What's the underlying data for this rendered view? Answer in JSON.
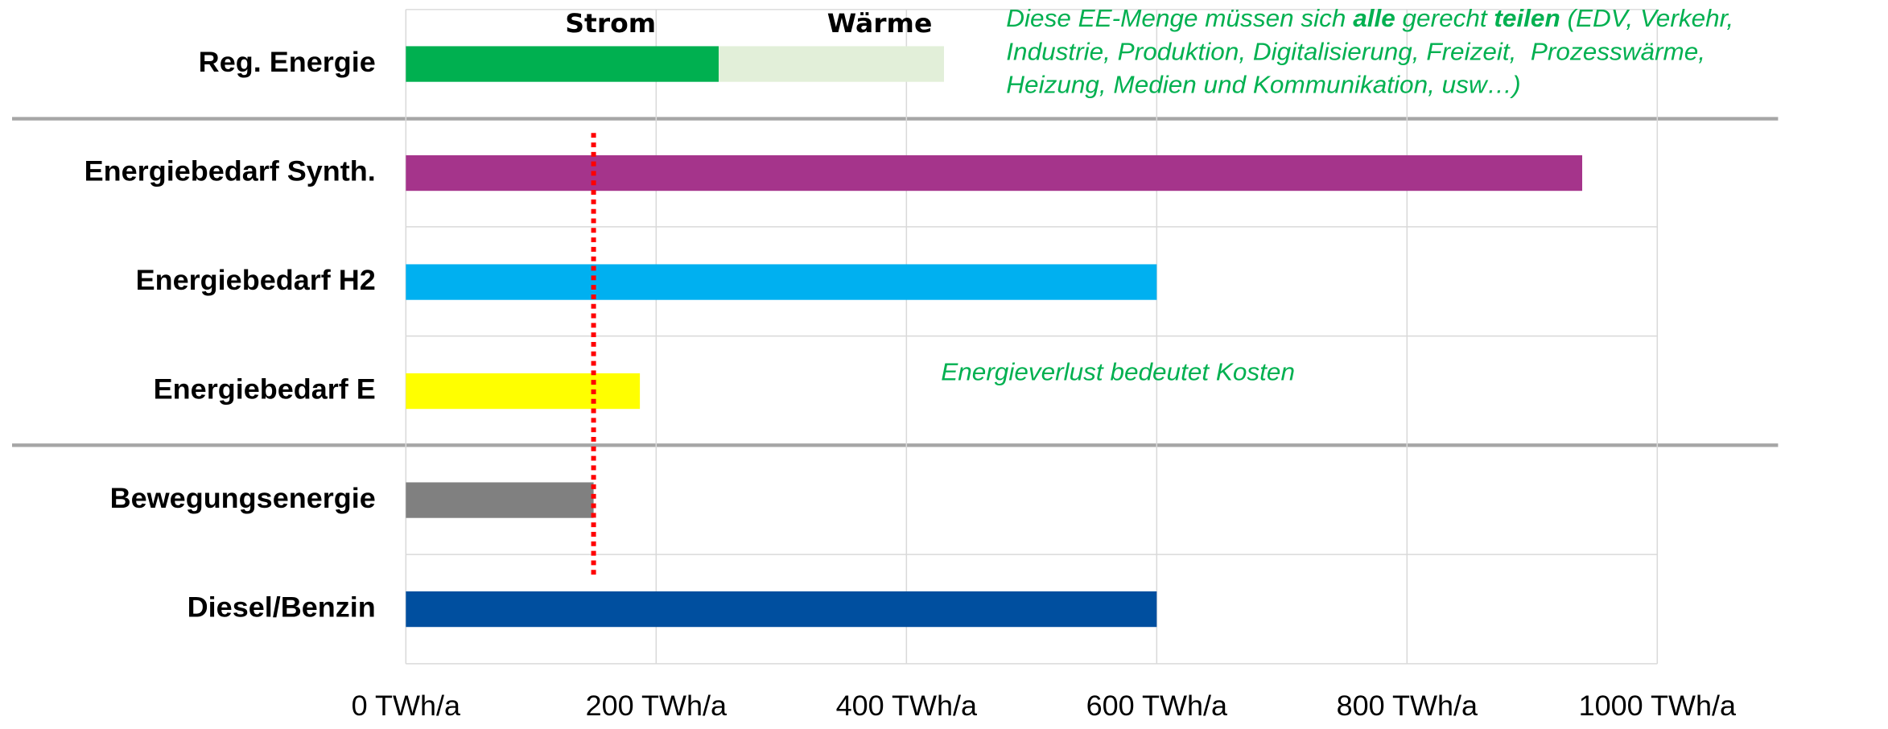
{
  "chart_data": {
    "type": "bar",
    "orientation": "horizontal",
    "categories": [
      "Reg. Energie",
      "Energiebedarf Synth.",
      "Energiebedarf H2",
      "Energiebedarf E",
      "Bewegungsenergie",
      "Diesel/Benzin"
    ],
    "values": [
      null,
      940,
      600,
      187,
      150,
      600
    ],
    "colors": [
      null,
      "#a5348b",
      "#00b0f0",
      "#ffff00",
      "#808080",
      "#004f9f"
    ],
    "series": [
      {
        "name": "Strom",
        "color": "#00b050",
        "values": [
          250,
          null,
          null,
          null,
          null,
          null
        ]
      },
      {
        "name": "Wärme",
        "color": "#e2efd9",
        "values": [
          180,
          null,
          null,
          null,
          null,
          null
        ]
      }
    ],
    "xlim": [
      0,
      1000
    ],
    "xticks": [
      {
        "value": 0,
        "label": "0 TWh/a"
      },
      {
        "value": 200,
        "label": "200 TWh/a"
      },
      {
        "value": 400,
        "label": "400 TWh/a"
      },
      {
        "value": 600,
        "label": "600 TWh/a"
      },
      {
        "value": 800,
        "label": "800 TWh/a"
      },
      {
        "value": 1000,
        "label": "1000 TWh/a"
      }
    ],
    "grid": true,
    "reference_line": {
      "value": 150,
      "color": "#ff0000"
    },
    "annotations": [
      {
        "lines": [
          [
            "Diese EE-Menge müssen sich ",
            "alle",
            " gerecht ",
            "teilen",
            " (EDV, Verkehr,"
          ],
          [
            "Industrie, Produktion, Digitalisierung, Freizeit,  Prozesswärme,"
          ],
          [
            "Heizung, Medien und Kommunikation, usw…)"
          ]
        ]
      },
      {
        "lines": [
          [
            "Energieverlust bedeutet Kosten"
          ]
        ]
      }
    ]
  }
}
